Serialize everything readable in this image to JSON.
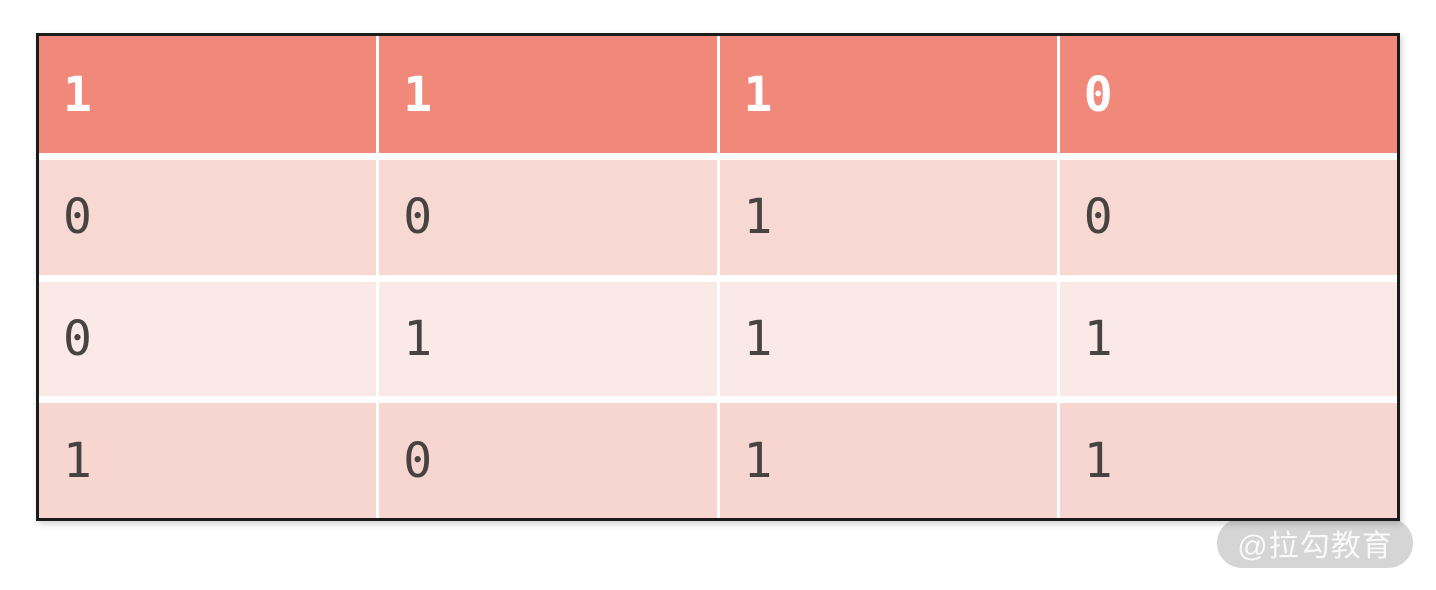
{
  "table": {
    "header": [
      "1",
      "1",
      "1",
      "0"
    ],
    "rows": [
      [
        "0",
        "0",
        "1",
        "0"
      ],
      [
        "0",
        "1",
        "1",
        "1"
      ],
      [
        "1",
        "0",
        "1",
        "1"
      ]
    ]
  },
  "watermark": {
    "text": "@拉勾教育"
  },
  "colors": {
    "header_bg": "#f0897a",
    "header_text": "#ffffff",
    "row_bg": "#f8d8d3",
    "row_alt_bg": "#fbe9e7",
    "row_last_bg": "#f7d5d0",
    "cell_text": "#474340",
    "table_border": "#1b1b1b",
    "grid_line": "#ffffff",
    "watermark_bg": "#bebebe",
    "watermark_text": "#ffffff"
  },
  "chart_data": {
    "type": "table",
    "title": "",
    "columns": [
      "1",
      "1",
      "1",
      "0"
    ],
    "rows": [
      [
        0,
        0,
        1,
        0
      ],
      [
        0,
        1,
        1,
        1
      ],
      [
        1,
        0,
        1,
        1
      ]
    ],
    "notes": "binary matrix / truth-table style figure; header row highlighted in coral, data rows alternating pink shades"
  }
}
